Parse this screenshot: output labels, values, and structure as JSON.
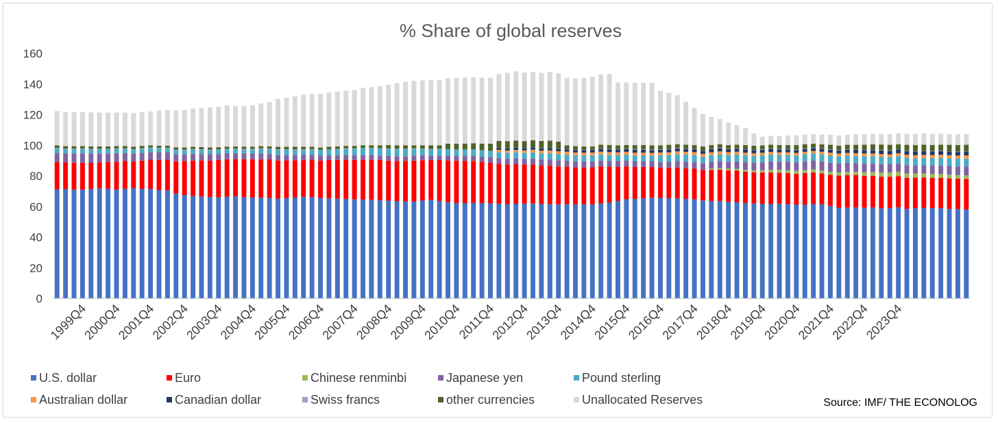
{
  "chart_data": {
    "type": "bar",
    "stacked": true,
    "title": "% Share of global reserves",
    "xlabel": "",
    "ylabel": "",
    "ylim": [
      0,
      160
    ],
    "yticks": [
      "0",
      "20",
      "40",
      "60",
      "80",
      "100",
      "120",
      "140",
      "160"
    ],
    "grid": false,
    "legend_position": "bottom",
    "source": "Source: IMF/ THE ECONOLOG",
    "first_quarter": "1999Q1",
    "x_tick_labels": [
      "1999Q4",
      "2000Q4",
      "2001Q4",
      "2002Q4",
      "2003Q4",
      "2004Q4",
      "2005Q4",
      "2006Q4",
      "2007Q4",
      "2008Q4",
      "2009Q4",
      "2010Q4",
      "2011Q4",
      "2012Q4",
      "2013Q4",
      "2014Q4",
      "2015Q4",
      "2016Q4",
      "2017Q4",
      "2018Q4",
      "2019Q4",
      "2020Q4",
      "2021Q4",
      "2022Q4",
      "2023Q4"
    ],
    "series": [
      {
        "name": "U.S. dollar",
        "color": "#4472C4",
        "values": [
          71.2,
          71.5,
          71.0,
          71.0,
          71.5,
          71.8,
          71.6,
          71.1,
          71.6,
          72.1,
          71.5,
          71.5,
          70.8,
          70.5,
          68.5,
          67.5,
          66.9,
          66.5,
          66.2,
          66.0,
          66.4,
          66.7,
          66.2,
          65.9,
          65.9,
          65.6,
          65.1,
          65.5,
          65.9,
          66.4,
          66.1,
          65.6,
          65.3,
          65.1,
          64.9,
          64.7,
          64.6,
          64.4,
          64.1,
          63.9,
          63.5,
          63.3,
          63.2,
          63.9,
          64.4,
          63.7,
          62.9,
          62.2,
          62.1,
          62.4,
          62.2,
          62.1,
          61.8,
          61.5,
          61.9,
          61.9,
          62.0,
          61.7,
          61.6,
          61.4,
          61.6,
          61.3,
          61.5,
          61.5,
          62.0,
          62.6,
          63.7,
          64.8,
          65.0,
          65.4,
          65.8,
          65.7,
          65.5,
          65.4,
          65.0,
          64.7,
          64.0,
          63.6,
          63.6,
          63.1,
          62.8,
          62.2,
          62.0,
          61.7,
          61.7,
          61.8,
          61.6,
          61.2,
          61.2,
          61.7,
          61.4,
          60.4,
          59.2,
          59.3,
          59.4,
          59.1,
          59.4,
          58.9,
          59.0,
          59.5,
          58.5,
          58.9,
          59.2,
          59.0,
          58.9,
          58.5,
          58.4,
          58.1
        ]
      },
      {
        "name": "Euro",
        "color": "#FF0000",
        "values": [
          17.9,
          17.4,
          17.6,
          17.6,
          17.0,
          16.9,
          17.4,
          18.1,
          18.0,
          17.3,
          18.4,
          19.0,
          19.6,
          20.0,
          21.0,
          22.1,
          23.1,
          23.5,
          23.8,
          24.3,
          24.4,
          24.2,
          24.7,
          24.9,
          24.9,
          25.1,
          24.9,
          24.6,
          24.3,
          24.0,
          24.4,
          24.4,
          25.0,
          25.3,
          25.7,
          25.6,
          26.0,
          26.2,
          26.3,
          26.0,
          26.2,
          26.3,
          26.7,
          26.3,
          26.0,
          26.6,
          27.2,
          27.7,
          27.7,
          27.3,
          26.9,
          26.4,
          26.0,
          25.9,
          25.7,
          25.6,
          25.5,
          25.0,
          25.2,
          24.7,
          24.4,
          24.1,
          24.0,
          24.1,
          24.2,
          23.4,
          22.1,
          21.4,
          20.8,
          20.5,
          20.0,
          19.6,
          19.9,
          20.1,
          19.9,
          20.0,
          19.9,
          20.2,
          20.4,
          20.5,
          20.7,
          20.5,
          20.4,
          20.6,
          20.5,
          20.3,
          20.2,
          20.2,
          20.7,
          20.6,
          20.2,
          20.3,
          21.0,
          21.3,
          21.2,
          21.0,
          20.7,
          20.6,
          20.5,
          20.4,
          20.3,
          20.0,
          19.8,
          19.8,
          19.9,
          19.9,
          19.8,
          20.0
        ]
      },
      {
        "name": "Chinese renminbi",
        "color": "#9BBB59",
        "values": [
          0,
          0,
          0,
          0,
          0,
          0,
          0,
          0,
          0,
          0,
          0,
          0,
          0,
          0,
          0,
          0,
          0,
          0,
          0,
          0,
          0,
          0,
          0,
          0,
          0,
          0,
          0,
          0,
          0,
          0,
          0,
          0,
          0,
          0,
          0,
          0,
          0,
          0,
          0,
          0,
          0,
          0,
          0,
          0,
          0,
          0,
          0,
          0,
          0,
          0,
          0,
          0,
          0,
          0,
          0,
          0,
          0,
          0,
          0,
          0,
          0,
          0,
          0,
          0,
          0,
          0,
          0,
          0,
          0,
          0,
          0,
          0,
          0,
          0,
          0,
          0,
          0,
          1.0,
          1.1,
          1.1,
          1.1,
          1.2,
          1.2,
          1.4,
          1.8,
          1.9,
          1.9,
          1.9,
          1.9,
          1.9,
          1.9,
          1.9,
          2.0,
          2.0,
          2.1,
          2.3,
          2.4,
          2.7,
          2.8,
          2.8,
          2.7,
          2.6,
          2.5,
          2.4,
          2.4,
          2.4,
          2.3,
          2.3
        ]
      },
      {
        "name": "Japanese yen",
        "color": "#8064A2",
        "values": [
          6.0,
          5.8,
          6.0,
          6.1,
          6.1,
          5.9,
          5.7,
          5.6,
          5.3,
          5.1,
          5.1,
          5.0,
          5.0,
          4.9,
          4.5,
          4.4,
          4.4,
          4.2,
          4.1,
          3.9,
          4.0,
          3.9,
          3.9,
          3.8,
          3.8,
          3.7,
          3.7,
          3.6,
          3.5,
          3.4,
          3.3,
          3.2,
          3.1,
          3.0,
          3.1,
          3.1,
          3.0,
          3.0,
          2.9,
          3.1,
          3.1,
          3.2,
          3.4,
          3.3,
          2.9,
          3.0,
          3.1,
          3.2,
          3.1,
          3.3,
          3.4,
          3.6,
          3.8,
          3.8,
          3.9,
          3.7,
          4.0,
          4.1,
          4.0,
          4.1,
          4.0,
          4.0,
          3.9,
          3.9,
          3.8,
          3.9,
          4.0,
          3.9,
          3.8,
          3.8,
          3.8,
          3.7,
          3.8,
          4.1,
          4.3,
          4.2,
          4.2,
          4.5,
          4.6,
          4.6,
          4.9,
          5.1,
          4.9,
          5.2,
          5.4,
          5.2,
          5.5,
          5.6,
          5.7,
          5.9,
          6.0,
          6.0,
          6.0,
          5.9,
          5.6,
          5.6,
          5.5,
          5.5,
          5.3,
          5.4,
          5.5,
          5.2,
          5.4,
          5.5,
          5.6,
          5.7,
          5.7,
          5.8
        ]
      },
      {
        "name": "Pound sterling",
        "color": "#4BACC6",
        "values": [
          2.9,
          2.8,
          2.9,
          2.9,
          2.8,
          2.8,
          2.7,
          2.8,
          2.7,
          2.7,
          2.7,
          2.8,
          2.7,
          2.7,
          2.8,
          2.8,
          2.8,
          2.8,
          2.7,
          2.8,
          2.6,
          2.7,
          2.6,
          2.8,
          3.1,
          3.2,
          3.4,
          3.4,
          3.5,
          3.5,
          3.5,
          3.6,
          3.8,
          4.0,
          4.1,
          4.4,
          4.5,
          4.5,
          4.6,
          4.7,
          4.8,
          4.7,
          4.5,
          4.1,
          4.1,
          4.2,
          4.1,
          4.1,
          4.2,
          4.2,
          4.1,
          4.2,
          3.9,
          3.9,
          3.9,
          3.8,
          3.8,
          3.9,
          4.0,
          4.1,
          4.0,
          4.0,
          4.0,
          4.0,
          4.0,
          3.8,
          3.8,
          3.8,
          3.7,
          3.7,
          3.7,
          4.5,
          4.4,
          4.6,
          4.7,
          4.8,
          4.5,
          4.4,
          4.5,
          4.4,
          4.5,
          4.4,
          4.5,
          4.5,
          4.5,
          4.5,
          4.5,
          4.4,
          4.6,
          4.6,
          4.6,
          4.8,
          4.6,
          4.7,
          4.7,
          4.8,
          4.8,
          4.8,
          4.6,
          4.9,
          4.9,
          4.8,
          4.8,
          4.9,
          5.0,
          5.0,
          5.0,
          5.0
        ]
      },
      {
        "name": "Australian dollar",
        "color": "#F79646",
        "values": [
          0,
          0,
          0,
          0,
          0,
          0,
          0,
          0,
          0,
          0,
          0,
          0,
          0,
          0,
          0,
          0,
          0,
          0,
          0,
          0,
          0,
          0,
          0,
          0,
          0,
          0,
          0,
          0,
          0,
          0,
          0,
          0,
          0,
          0,
          0,
          0,
          0,
          0,
          0,
          0,
          0,
          0,
          0,
          0,
          0,
          0,
          0,
          0,
          0,
          0,
          0,
          0,
          1.5,
          1.5,
          1.6,
          1.7,
          1.8,
          1.8,
          1.8,
          1.8,
          1.8,
          1.9,
          1.8,
          1.8,
          1.8,
          1.8,
          1.8,
          1.8,
          1.8,
          1.8,
          1.7,
          1.8,
          1.8,
          1.8,
          1.8,
          1.8,
          1.8,
          1.7,
          1.8,
          1.8,
          1.8,
          1.8,
          1.8,
          1.7,
          1.7,
          1.7,
          1.7,
          1.7,
          1.6,
          1.6,
          1.7,
          1.8,
          1.8,
          1.8,
          1.8,
          1.8,
          1.8,
          1.8,
          1.8,
          1.8,
          1.9,
          2.0,
          2.0,
          2.0,
          2.0,
          2.0,
          2.1,
          2.2
        ]
      },
      {
        "name": "Canadian dollar",
        "color": "#1F3864",
        "values": [
          0,
          0,
          0,
          0,
          0,
          0,
          0,
          0,
          0,
          0,
          0,
          0,
          0,
          0,
          0,
          0,
          0,
          0,
          0,
          0,
          0,
          0,
          0,
          0,
          0,
          0,
          0,
          0,
          0,
          0,
          0,
          0,
          0,
          0,
          0,
          0,
          0,
          0,
          0,
          0,
          0,
          0,
          0,
          0,
          0,
          0,
          0,
          0,
          0,
          0,
          0,
          0,
          1.3,
          1.4,
          1.4,
          1.4,
          1.5,
          1.5,
          1.5,
          1.5,
          1.5,
          1.6,
          1.6,
          1.7,
          1.8,
          1.9,
          1.9,
          1.9,
          1.9,
          1.9,
          1.8,
          1.8,
          1.8,
          1.9,
          1.9,
          1.9,
          1.9,
          2.0,
          2.0,
          2.0,
          2.0,
          2.0,
          2.0,
          2.0,
          2.0,
          1.9,
          1.9,
          1.9,
          1.9,
          1.9,
          1.9,
          1.9,
          2.0,
          2.1,
          2.2,
          2.2,
          2.2,
          2.3,
          2.4,
          2.4,
          2.4,
          2.4,
          2.4,
          2.4,
          2.4,
          2.4,
          2.3,
          2.5
        ]
      },
      {
        "name": "Swiss francs",
        "color": "#A99BC9",
        "values": [
          0.3,
          0.3,
          0.3,
          0.3,
          0.3,
          0.3,
          0.3,
          0.3,
          0.3,
          0.3,
          0.3,
          0.3,
          0.3,
          0.3,
          0.4,
          0.4,
          0.4,
          0.4,
          0.4,
          0.3,
          0.3,
          0.3,
          0.3,
          0.3,
          0.3,
          0.3,
          0.3,
          0.3,
          0.2,
          0.2,
          0.2,
          0.2,
          0.2,
          0.2,
          0.2,
          0.2,
          0.2,
          0.2,
          0.2,
          0.2,
          0.2,
          0.2,
          0.2,
          0.2,
          0.2,
          0.2,
          0.1,
          0.1,
          0.1,
          0.1,
          0.1,
          0.1,
          0.1,
          0.1,
          0.1,
          0.1,
          0.1,
          0.1,
          0.1,
          0.1,
          0.1,
          0.1,
          0.2,
          0.2,
          0.2,
          0.2,
          0.2,
          0.2,
          0.3,
          0.3,
          0.3,
          0.3,
          0.3,
          0.3,
          0.2,
          0.2,
          0.2,
          0.2,
          0.2,
          0.2,
          0.2,
          0.2,
          0.2,
          0.2,
          0.2,
          0.2,
          0.2,
          0.2,
          0.2,
          0.2,
          0.2,
          0.2,
          0.2,
          0.2,
          0.2,
          0.2,
          0.2,
          0.2,
          0.2,
          0.2,
          0.2,
          0.2,
          0.2,
          0.2,
          0.2,
          0.2,
          0.2,
          0.2
        ]
      },
      {
        "name": "other currencies",
        "color": "#4F6228",
        "values": [
          1.6,
          1.6,
          1.6,
          1.6,
          1.6,
          1.6,
          1.6,
          1.6,
          1.6,
          1.6,
          1.6,
          1.3,
          1.3,
          1.3,
          1.4,
          1.4,
          1.4,
          1.4,
          1.4,
          1.4,
          1.4,
          1.4,
          1.4,
          1.4,
          1.4,
          1.4,
          1.6,
          1.6,
          1.6,
          1.5,
          1.5,
          1.5,
          1.6,
          1.6,
          1.6,
          1.6,
          1.7,
          1.7,
          1.8,
          2.2,
          2.2,
          2.3,
          2.0,
          2.2,
          2.4,
          2.3,
          3.6,
          3.7,
          3.9,
          4.0,
          4.4,
          4.6,
          4.4,
          4.6,
          4.6,
          4.5,
          4.6,
          4.7,
          4.8,
          4.7,
          2.6,
          2.4,
          2.2,
          2.0,
          2.6,
          2.6,
          2.5,
          2.4,
          2.8,
          2.8,
          2.9,
          2.6,
          2.8,
          2.5,
          2.6,
          2.5,
          2.7,
          2.5,
          2.5,
          2.4,
          2.4,
          2.7,
          2.7,
          2.6,
          2.6,
          2.6,
          2.6,
          3.0,
          2.9,
          2.6,
          2.7,
          3.0,
          3.0,
          3.0,
          3.1,
          3.4,
          3.6,
          3.7,
          3.7,
          3.3,
          3.9,
          4.0,
          4.1,
          4.0,
          4.0,
          4.2,
          4.4,
          4.3
        ]
      },
      {
        "name": "Unallocated Reserves",
        "color": "#D9D9D9",
        "values": [
          22.5,
          22.4,
          22.3,
          22.3,
          22.2,
          22.1,
          22.0,
          21.9,
          21.8,
          21.9,
          22.0,
          22.1,
          23.0,
          23.4,
          24.0,
          24.5,
          25.0,
          25.5,
          26.2,
          26.5,
          27.0,
          26.5,
          26.4,
          27.0,
          27.9,
          29.0,
          31.3,
          32.0,
          33.0,
          34.0,
          34.6,
          35.0,
          35.5,
          35.8,
          36.0,
          36.5,
          37.5,
          38.0,
          38.7,
          39.5,
          40.5,
          41.5,
          42.0,
          42.4,
          42.6,
          42.5,
          42.9,
          43.0,
          43.1,
          43.2,
          43.0,
          43.1,
          43.8,
          44.6,
          45.2,
          44.8,
          44.6,
          44.5,
          45.0,
          44.6,
          44.0,
          44.1,
          44.9,
          45.5,
          45.8,
          46.4,
          41.0,
          40.8,
          40.7,
          40.6,
          40.8,
          35.6,
          34.0,
          32.0,
          28.0,
          24.4,
          21.2,
          18.4,
          16.4,
          14.8,
          12.8,
          11.2,
          8.0,
          5.8,
          5.8,
          6.0,
          6.2,
          6.4,
          6.3,
          6.2,
          6.4,
          6.6,
          6.6,
          6.6,
          6.8,
          6.8,
          6.8,
          6.9,
          7.0,
          7.1,
          7.2,
          7.3,
          7.3,
          7.2,
          7.2,
          7.0,
          7.0,
          6.9
        ]
      }
    ]
  }
}
